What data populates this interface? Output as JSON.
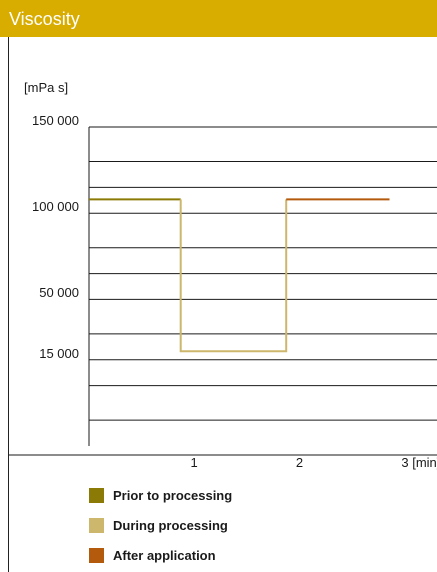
{
  "chart_data": {
    "type": "line",
    "title": "Viscosity",
    "ylabel": "[mPa s]",
    "xlabel": "[min]",
    "x_ticks": [
      {
        "value": 1,
        "label": "1"
      },
      {
        "value": 2,
        "label": "2"
      },
      {
        "value": 3,
        "label": "3 [min]"
      }
    ],
    "y_ticks": [
      {
        "value": 150000,
        "label": "150 000"
      },
      {
        "value": 100000,
        "label": "100 000"
      },
      {
        "value": 50000,
        "label": "50 000"
      },
      {
        "value": 15000,
        "label": "15 000"
      }
    ],
    "xlim": [
      0,
      3.3
    ],
    "ylim": [
      -35000,
      150000
    ],
    "grid_values": [
      -20000,
      0,
      15000,
      30000,
      50000,
      65000,
      80000,
      100000,
      115000,
      130000,
      150000
    ],
    "grid": true,
    "legend_position": "bottom",
    "series": [
      {
        "name": "Prior to processing",
        "color": "#8b7a05",
        "x": [
          0,
          0.87
        ],
        "y": [
          108000,
          108000
        ]
      },
      {
        "name": "During processing",
        "color": "#cdb76c",
        "x": [
          0.87,
          0.87,
          1.87,
          1.87
        ],
        "y": [
          108000,
          20000,
          20000,
          108000
        ]
      },
      {
        "name": "After application",
        "color": "#b35a0c",
        "x": [
          1.87,
          2.85
        ],
        "y": [
          108000,
          108000
        ]
      }
    ]
  }
}
